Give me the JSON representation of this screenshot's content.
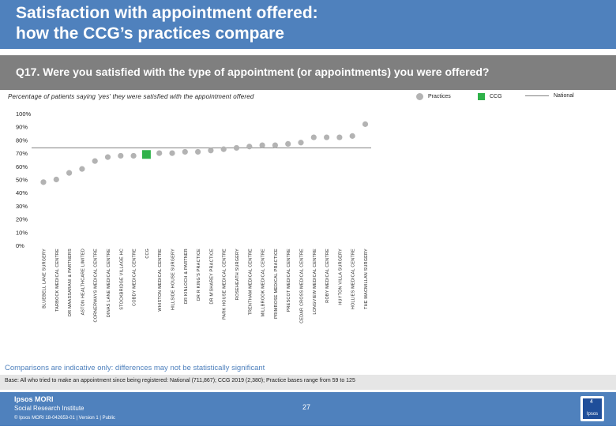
{
  "header": {
    "title": "Satisfaction with appointment offered:\nhow the CCG’s practices compare"
  },
  "question": "Q17. Were you satisfied with the type of appointment (or appointments) you were offered?",
  "subtitle": "Percentage of patients saying 'yes' they were satisfied with the appointment offered",
  "legend": {
    "practices": "Practices",
    "ccg": "CCG",
    "national": "National"
  },
  "colors": {
    "header": "#4f81bd",
    "question_bar": "#7f7f7f",
    "practice_dot": "#b3b3b3",
    "ccg_marker": "#2fb24a",
    "national_line": "#7f7f7f",
    "note": "#4f81bd"
  },
  "chart_data": {
    "type": "scatter",
    "ytick_labels": [
      "0%",
      "10%",
      "20%",
      "30%",
      "40%",
      "50%",
      "60%",
      "70%",
      "80%",
      "90%",
      "100%"
    ],
    "ylim": [
      0,
      100
    ],
    "national": 74,
    "categories": [
      "BLUEBELL LANE SURGERY",
      "TARBOCK MEDICAL CENTRE",
      "DR MAASSARANI & PARTNERS",
      "ASTON HEALTHCARE LIMITED",
      "CORNERWAYS MEDICAL CENTRE",
      "DINAS LANE MEDICAL CENTRE",
      "STOCKBRIDGE VILLAGE HC",
      "COBDY MEDICAL CENTRE",
      "CCG",
      "WHISTON MEDICAL CENTRE",
      "HILLSIDE HOUSE SURGERY",
      "DR KINLOCH & PARTNER",
      "DR R KING'S PRACTICE",
      "DR M'SHAREY PRACTICE",
      "PARK HOUSE MEDICAL CENTRE",
      "ROSEHEATH SURGERY",
      "TRENTHAM MEDICAL CENTRE",
      "MILLBROOK MEDICAL CENTRE",
      "PRIMROSE MEDICAL PRACTICE",
      "PRESCOT MEDICAL CENTRE",
      "CEDAR CROSS MEDICAL CENTRE",
      "LONGVIEW MEDICAL CENTRE",
      "ROBY MEDICAL CENTRE",
      "HUYTON VILLA SURGERY",
      "HOLLIES MEDICAL CENTRE",
      "THE MACMILLAN SURGERY"
    ],
    "values": [
      48,
      50,
      55,
      58,
      64,
      67,
      68,
      68,
      69,
      70,
      70,
      71,
      71,
      72,
      73,
      74,
      75,
      76,
      76,
      77,
      78,
      82,
      82,
      82,
      83,
      92
    ],
    "ccg_index": 8
  },
  "note": "Comparisons are indicative only: differences may not be statistically significant",
  "base": "Base: All who tried to make an appointment since being registered: National (711,867); CCG 2019 (2,380); Practice bases range from 59 to 125",
  "footer": {
    "logo_line1": "Ipsos MORI",
    "logo_line2": "Social Research Institute",
    "copyright": "© Ipsos MORI      18-042653-01 | Version 1 | Public",
    "page": "27",
    "brand": "Ipsos",
    "brand_num": "4"
  }
}
